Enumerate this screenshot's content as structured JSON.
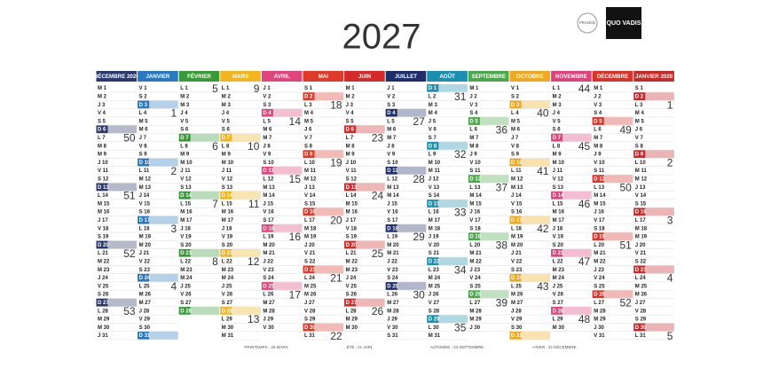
{
  "header": {
    "title": "2027",
    "brand": "QUO VADIS",
    "badge": "FRANCE"
  },
  "months": [
    {
      "name": "DÉCEMBRE 2026",
      "color": "#2b3a6b",
      "days": [
        "M 1",
        "M 2",
        "J 3",
        "V 4",
        "S 5",
        "D 6",
        {
          "d": "L 7",
          "w": "50"
        },
        "M 8",
        "M 9",
        "J 10",
        "V 11",
        "S 12",
        "D 13",
        {
          "d": "L 14",
          "w": "51"
        },
        "M 15",
        "M 16",
        "J 17",
        "V 18",
        "S 19",
        "D 20",
        {
          "d": "L 21",
          "w": "52"
        },
        "M 22",
        "M 23",
        "J 24",
        "V 25",
        "S 26",
        "D 27",
        {
          "d": "L 28",
          "w": "53"
        },
        "M 29",
        "M 30",
        "J 31"
      ]
    },
    {
      "name": "JANVIER",
      "color": "#2a78c0",
      "days": [
        "V 1",
        "S 2",
        "D 3",
        {
          "d": "L 4",
          "w": "1"
        },
        "M 5",
        "M 6",
        "J 7",
        "V 8",
        "S 9",
        "D 10",
        {
          "d": "L 11",
          "w": "2"
        },
        "M 12",
        "M 13",
        "J 14",
        "V 15",
        "S 16",
        "D 17",
        {
          "d": "L 18",
          "w": "3"
        },
        "M 19",
        "M 20",
        "J 21",
        "V 22",
        "S 23",
        "D 24",
        {
          "d": "L 25",
          "w": "4"
        },
        "M 26",
        "M 27",
        "J 28",
        "V 29",
        "S 30",
        "D 31"
      ]
    },
    {
      "name": "FÉVRIER",
      "color": "#3a9a3a",
      "days": [
        {
          "d": "L 1",
          "w": "5"
        },
        "M 2",
        "M 3",
        "J 4",
        "V 5",
        "S 6",
        "D 7",
        {
          "d": "L 8",
          "w": "6"
        },
        "M 9",
        "M 10",
        "J 11",
        "V 12",
        "S 13",
        "D 14",
        {
          "d": "L 15",
          "w": "7"
        },
        "M 16",
        "M 17",
        "J 18",
        "V 19",
        "S 20",
        "D 21",
        {
          "d": "L 22",
          "w": "8"
        },
        "M 23",
        "M 24",
        "J 25",
        "V 26",
        "S 27",
        "D 28"
      ]
    },
    {
      "name": "MARS",
      "color": "#f2b51e",
      "days": [
        {
          "d": "L 1",
          "w": "9"
        },
        "M 2",
        "M 3",
        "J 4",
        "V 5",
        "S 6",
        "D 7",
        {
          "d": "L 8",
          "w": "10"
        },
        "M 9",
        "M 10",
        "J 11",
        "V 12",
        "S 13",
        "D 14",
        {
          "d": "L 15",
          "w": "11"
        },
        "M 16",
        "M 17",
        "J 18",
        "V 19",
        "S 20",
        "D 21",
        {
          "d": "L 22",
          "w": "12"
        },
        "M 23",
        "M 24",
        "J 25",
        "V 26",
        "S 27",
        "D 28",
        {
          "d": "L 29",
          "w": "13"
        },
        "M 30",
        "M 31"
      ]
    },
    {
      "name": "AVRIL",
      "color": "#e0457b",
      "days": [
        "J 1",
        "V 2",
        "S 3",
        "D 4",
        {
          "d": "L 5",
          "w": "14"
        },
        "M 6",
        "M 7",
        "J 8",
        "V 9",
        "S 10",
        "D 11",
        {
          "d": "L 12",
          "w": "15"
        },
        "M 13",
        "M 14",
        "J 15",
        "V 16",
        "S 17",
        "D 18",
        {
          "d": "L 19",
          "w": "16"
        },
        "M 20",
        "M 21",
        "J 22",
        "V 23",
        "S 24",
        "D 25",
        {
          "d": "L 26",
          "w": "17"
        },
        "M 27",
        "M 28",
        "J 29",
        "V 30"
      ]
    },
    {
      "name": "MAI",
      "color": "#e03a2a",
      "days": [
        "S 1",
        "D 2",
        {
          "d": "L 3",
          "w": "18"
        },
        "M 4",
        "M 5",
        "J 6",
        "V 7",
        "S 8",
        "D 9",
        {
          "d": "L 10",
          "w": "19"
        },
        "M 11",
        "M 12",
        "J 13",
        "V 14",
        "S 15",
        "D 16",
        {
          "d": "L 17",
          "w": "20"
        },
        "M 18",
        "M 19",
        "J 20",
        "V 21",
        "S 22",
        "D 23",
        {
          "d": "L 24",
          "w": "21"
        },
        "M 25",
        "M 26",
        "J 27",
        "V 28",
        "S 29",
        "D 30",
        {
          "d": "L 31",
          "w": "22"
        }
      ]
    },
    {
      "name": "JUIN",
      "color": "#d42a2a",
      "days": [
        "M 1",
        "M 2",
        "J 3",
        "V 4",
        "S 5",
        "D 6",
        {
          "d": "L 7",
          "w": "23"
        },
        "M 8",
        "M 9",
        "J 10",
        "V 11",
        "S 12",
        "D 13",
        {
          "d": "L 14",
          "w": "24"
        },
        "M 15",
        "M 16",
        "J 17",
        "V 18",
        "S 19",
        "D 20",
        {
          "d": "L 21",
          "w": "25"
        },
        "M 22",
        "M 23",
        "J 24",
        "V 25",
        "S 26",
        "D 27",
        {
          "d": "L 28",
          "w": "26"
        },
        "M 29",
        "M 30"
      ]
    },
    {
      "name": "JUILLET",
      "color": "#1f2f6a",
      "days": [
        "J 1",
        "V 2",
        "S 3",
        "D 4",
        {
          "d": "L 5",
          "w": "27"
        },
        "M 6",
        "M 7",
        "J 8",
        "V 9",
        "S 10",
        "D 11",
        {
          "d": "L 12",
          "w": "28"
        },
        "M 13",
        "M 14",
        "J 15",
        "V 16",
        "S 17",
        "D 18",
        {
          "d": "L 19",
          "w": "29"
        },
        "M 20",
        "M 21",
        "J 22",
        "V 23",
        "S 24",
        "D 25",
        {
          "d": "L 26",
          "w": "30"
        },
        "M 27",
        "M 28",
        "J 29",
        "V 30",
        "S 31"
      ]
    },
    {
      "name": "AOÛT",
      "color": "#1a8fb0",
      "days": [
        "D 1",
        {
          "d": "L 2",
          "w": "31"
        },
        "M 3",
        "M 4",
        "J 5",
        "V 6",
        "S 7",
        "D 8",
        {
          "d": "L 9",
          "w": "32"
        },
        "M 10",
        "M 11",
        "J 12",
        "V 13",
        "S 14",
        "D 15",
        {
          "d": "L 16",
          "w": "33"
        },
        "M 17",
        "M 18",
        "J 19",
        "V 20",
        "S 21",
        "D 22",
        {
          "d": "L 23",
          "w": "34"
        },
        "M 24",
        "M 25",
        "J 26",
        "V 27",
        "S 28",
        "D 29",
        {
          "d": "L 30",
          "w": "35"
        },
        "M 31"
      ]
    },
    {
      "name": "SEPTEMBRE",
      "color": "#4aa84a",
      "days": [
        "M 1",
        "J 2",
        "V 3",
        "S 4",
        "D 5",
        {
          "d": "L 6",
          "w": "36"
        },
        "M 7",
        "M 8",
        "J 9",
        "V 10",
        "S 11",
        "D 12",
        {
          "d": "L 13",
          "w": "37"
        },
        "M 14",
        "M 15",
        "J 16",
        "V 17",
        "S 18",
        "D 19",
        {
          "d": "L 20",
          "w": "38"
        },
        "M 21",
        "M 22",
        "J 23",
        "V 24",
        "S 25",
        "D 26",
        {
          "d": "L 27",
          "w": "39"
        },
        "M 28",
        "M 29",
        "J 30"
      ]
    },
    {
      "name": "OCTOBRE",
      "color": "#f0a81e",
      "days": [
        "V 1",
        "S 2",
        "D 3",
        {
          "d": "L 4",
          "w": "40"
        },
        "M 5",
        "M 6",
        "J 7",
        "V 8",
        "S 9",
        "D 10",
        {
          "d": "L 11",
          "w": "41"
        },
        "M 12",
        "M 13",
        "J 14",
        "V 15",
        "S 16",
        "D 17",
        {
          "d": "L 18",
          "w": "42"
        },
        "M 19",
        "M 20",
        "J 21",
        "V 22",
        "S 23",
        "D 24",
        {
          "d": "L 25",
          "w": "43"
        },
        "M 26",
        "M 27",
        "J 28",
        "V 29",
        "S 30",
        "D 31"
      ]
    },
    {
      "name": "NOVEMBRE",
      "color": "#e0427a",
      "days": [
        {
          "d": "L 1",
          "w": "44"
        },
        "M 2",
        "M 3",
        "J 4",
        "V 5",
        "S 6",
        "D 7",
        {
          "d": "L 8",
          "w": "45"
        },
        "M 9",
        "M 10",
        "J 11",
        "V 12",
        "S 13",
        "D 14",
        {
          "d": "L 15",
          "w": "46"
        },
        "M 16",
        "M 17",
        "J 18",
        "V 19",
        "S 20",
        "D 21",
        {
          "d": "L 22",
          "w": "47"
        },
        "M 23",
        "M 24",
        "J 25",
        "V 26",
        "S 27",
        "D 28",
        {
          "d": "L 29",
          "w": "48"
        },
        "M 30"
      ]
    },
    {
      "name": "DÉCEMBRE",
      "color": "#d8342a",
      "days": [
        "M 1",
        "J 2",
        "V 3",
        "S 4",
        "D 5",
        {
          "d": "L 6",
          "w": "49"
        },
        "M 7",
        "M 8",
        "J 9",
        "V 10",
        "S 11",
        "D 12",
        {
          "d": "L 13",
          "w": "50"
        },
        "M 14",
        "M 15",
        "J 16",
        "V 17",
        "S 18",
        "D 19",
        {
          "d": "L 20",
          "w": "51"
        },
        "M 21",
        "M 22",
        "J 23",
        "V 24",
        "S 25",
        "D 26",
        {
          "d": "L 27",
          "w": "52"
        },
        "M 28",
        "M 29",
        "J 30",
        "V 31"
      ]
    },
    {
      "name": "JANVIER 2028",
      "color": "#c82a2a",
      "days": [
        "S 1",
        "D 2",
        {
          "d": "L 3",
          "w": "1"
        },
        "M 4",
        "M 5",
        "J 6",
        "V 7",
        "S 8",
        "D 9",
        {
          "d": "L 10",
          "w": "2"
        },
        "M 11",
        "M 12",
        "J 13",
        "V 14",
        "S 15",
        "D 16",
        {
          "d": "L 17",
          "w": "3"
        },
        "M 18",
        "M 19",
        "J 20",
        "V 21",
        "S 22",
        "D 23",
        {
          "d": "L 24",
          "w": "4"
        },
        "M 25",
        "M 26",
        "J 27",
        "V 28",
        "S 29",
        "D 30",
        {
          "d": "L 31",
          "w": "5"
        }
      ]
    }
  ],
  "footer": {
    "seasons": [
      "PRINTEMPS : 20 MARS",
      "ÉTÉ : 21 JUIN",
      "AUTOMNE : 23 SEPTEMBRE",
      "HIVER : 22 DÉCEMBRE"
    ]
  }
}
